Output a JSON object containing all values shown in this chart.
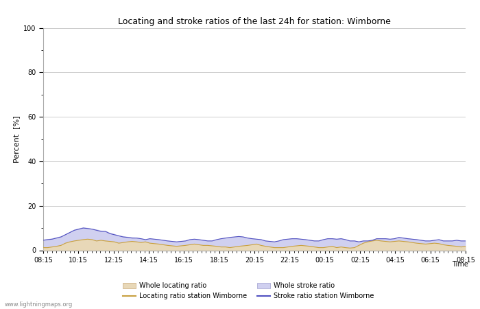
{
  "title": "Locating and stroke ratios of the last 24h for station: Wimborne",
  "ylabel": "Percent  [%]",
  "xlabel": "Time",
  "xlim": [
    0,
    96
  ],
  "ylim": [
    0,
    100
  ],
  "yticks": [
    0,
    20,
    40,
    60,
    80,
    100
  ],
  "ytick_minor": [
    10,
    30,
    50,
    70,
    90
  ],
  "xtick_labels": [
    "08:15",
    "10:15",
    "12:15",
    "14:15",
    "16:15",
    "18:15",
    "20:15",
    "22:15",
    "00:15",
    "02:15",
    "04:15",
    "06:15",
    "08:15"
  ],
  "background_color": "#ffffff",
  "plot_bg_color": "#ffffff",
  "grid_color": "#cccccc",
  "watermark": "www.lightningmaps.org",
  "whole_locating_fill_color": "#e8d8b8",
  "whole_stroke_fill_color": "#d0d0f0",
  "locating_line_color": "#c8a040",
  "stroke_line_color": "#5050c0",
  "whole_locating": [
    1.5,
    1.5,
    1.8,
    2.0,
    2.5,
    3.5,
    4.0,
    4.5,
    4.8,
    5.0,
    5.2,
    5.0,
    4.5,
    4.8,
    4.5,
    4.2,
    4.0,
    3.5,
    3.8,
    4.0,
    4.2,
    4.0,
    3.8,
    4.0,
    3.5,
    3.2,
    3.0,
    2.8,
    2.5,
    2.2,
    2.0,
    2.2,
    2.5,
    2.8,
    3.0,
    2.8,
    2.5,
    2.5,
    2.2,
    2.0,
    1.8,
    1.8,
    1.5,
    1.8,
    2.0,
    2.2,
    2.5,
    2.8,
    3.0,
    2.5,
    2.0,
    1.8,
    1.5,
    1.5,
    1.5,
    1.8,
    2.0,
    2.2,
    2.5,
    2.2,
    2.0,
    1.8,
    1.5,
    1.5,
    1.8,
    2.0,
    1.5,
    1.8,
    1.5,
    1.2,
    1.5,
    2.5,
    3.5,
    4.0,
    4.5,
    4.8,
    4.5,
    4.2,
    4.0,
    4.2,
    4.5,
    4.2,
    4.0,
    3.8,
    3.5,
    3.2,
    3.0,
    3.2,
    3.5,
    3.2,
    2.8,
    2.5,
    2.2,
    2.0,
    1.8,
    2.0
  ],
  "whole_stroke": [
    5.0,
    5.2,
    5.5,
    6.0,
    6.5,
    7.5,
    8.5,
    9.5,
    10.0,
    10.5,
    10.2,
    9.8,
    9.5,
    9.0,
    8.8,
    8.0,
    7.5,
    6.8,
    6.5,
    6.2,
    6.0,
    5.8,
    5.5,
    5.0,
    5.5,
    5.2,
    5.0,
    4.8,
    4.5,
    4.2,
    4.0,
    4.2,
    4.5,
    5.0,
    5.2,
    5.0,
    4.8,
    4.5,
    4.5,
    5.0,
    5.5,
    5.8,
    6.0,
    6.2,
    6.5,
    6.2,
    5.8,
    5.5,
    5.2,
    5.0,
    4.5,
    4.2,
    4.0,
    4.5,
    5.0,
    5.2,
    5.5,
    5.5,
    5.2,
    5.0,
    4.8,
    4.5,
    4.5,
    5.0,
    5.5,
    5.5,
    5.2,
    5.5,
    5.0,
    4.5,
    4.5,
    4.0,
    4.5,
    4.5,
    4.8,
    5.5,
    5.5,
    5.5,
    5.2,
    5.5,
    6.0,
    5.8,
    5.5,
    5.2,
    5.0,
    4.8,
    4.5,
    4.5,
    4.8,
    5.0,
    4.5,
    4.5,
    4.5,
    4.8,
    4.5,
    4.5
  ],
  "locating_line": [
    1.2,
    1.2,
    1.5,
    1.8,
    2.2,
    3.2,
    3.8,
    4.2,
    4.5,
    4.8,
    5.0,
    4.8,
    4.2,
    4.5,
    4.2,
    4.0,
    3.8,
    3.2,
    3.5,
    3.8,
    4.0,
    3.8,
    3.5,
    3.8,
    3.2,
    3.0,
    2.8,
    2.5,
    2.2,
    2.0,
    1.8,
    2.0,
    2.2,
    2.5,
    2.8,
    2.5,
    2.2,
    2.2,
    2.0,
    1.8,
    1.5,
    1.5,
    1.2,
    1.5,
    1.8,
    2.0,
    2.2,
    2.5,
    2.8,
    2.2,
    1.8,
    1.5,
    1.2,
    1.2,
    1.2,
    1.5,
    1.8,
    2.0,
    2.2,
    2.0,
    1.8,
    1.5,
    1.2,
    1.2,
    1.5,
    1.8,
    1.2,
    1.5,
    1.2,
    1.0,
    1.2,
    2.2,
    3.2,
    3.8,
    4.2,
    4.5,
    4.2,
    4.0,
    3.8,
    4.0,
    4.2,
    4.0,
    3.8,
    3.5,
    3.2,
    3.0,
    2.8,
    3.0,
    3.2,
    3.0,
    2.5,
    2.2,
    2.0,
    1.8,
    1.5,
    1.8
  ],
  "stroke_line": [
    4.5,
    4.8,
    5.0,
    5.5,
    6.0,
    7.0,
    8.0,
    9.0,
    9.5,
    10.0,
    9.8,
    9.5,
    9.0,
    8.5,
    8.5,
    7.5,
    7.0,
    6.5,
    6.0,
    5.8,
    5.5,
    5.5,
    5.2,
    4.8,
    5.2,
    5.0,
    4.8,
    4.5,
    4.2,
    4.0,
    3.8,
    4.0,
    4.2,
    4.8,
    5.0,
    4.8,
    4.5,
    4.2,
    4.2,
    4.8,
    5.2,
    5.5,
    5.8,
    6.0,
    6.2,
    6.0,
    5.5,
    5.2,
    5.0,
    4.8,
    4.2,
    4.0,
    3.8,
    4.2,
    4.8,
    5.0,
    5.2,
    5.2,
    5.0,
    4.8,
    4.5,
    4.2,
    4.2,
    4.8,
    5.2,
    5.2,
    5.0,
    5.2,
    4.8,
    4.2,
    4.2,
    3.8,
    4.2,
    4.2,
    4.5,
    5.2,
    5.2,
    5.2,
    5.0,
    5.2,
    5.8,
    5.5,
    5.2,
    5.0,
    4.8,
    4.5,
    4.2,
    4.2,
    4.5,
    4.8,
    4.2,
    4.2,
    4.2,
    4.5,
    4.2,
    4.2
  ]
}
